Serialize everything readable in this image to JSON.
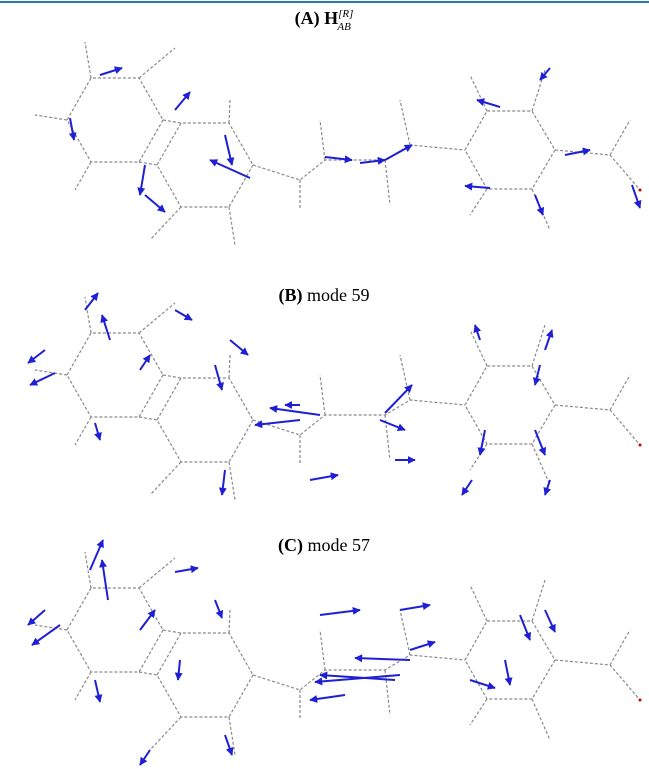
{
  "panels": [
    {
      "label": "(A)",
      "symbol": "H",
      "superscript": "[R]",
      "subscript": "AB"
    },
    {
      "label": "(B)",
      "title": "mode 59"
    },
    {
      "label": "(C)",
      "title": "mode 57"
    }
  ]
}
